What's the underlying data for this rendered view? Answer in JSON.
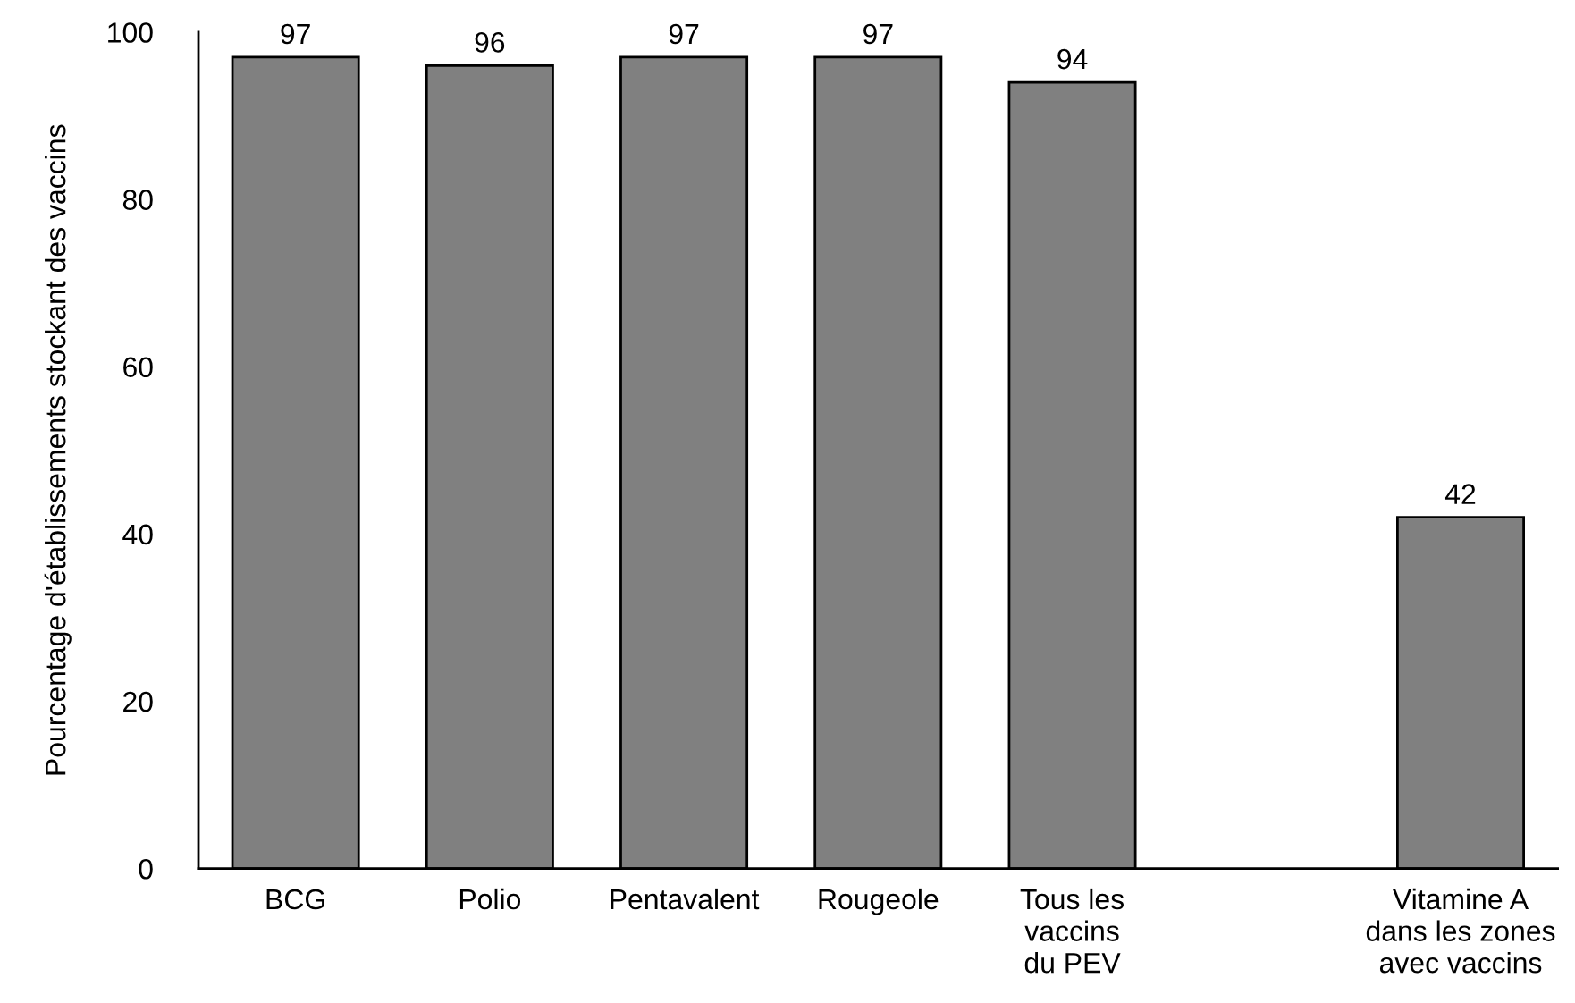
{
  "chart_data": {
    "type": "bar",
    "ylabel": "Pourcentage d'établissements stockant des vaccins",
    "categories": [
      "BCG",
      "Polio",
      "Pentavalent",
      "Rougeole",
      "Tous les\nvaccins\ndu PEV",
      null,
      "Vitamine A\ndans les zones\navec vaccins"
    ],
    "values": [
      97,
      96,
      97,
      97,
      94,
      null,
      42
    ],
    "color": "#808080",
    "ylim": [
      0,
      100
    ],
    "yticks": [
      0,
      20,
      40,
      60,
      80,
      100
    ],
    "data_labels": true,
    "grid": false,
    "legend": false
  }
}
